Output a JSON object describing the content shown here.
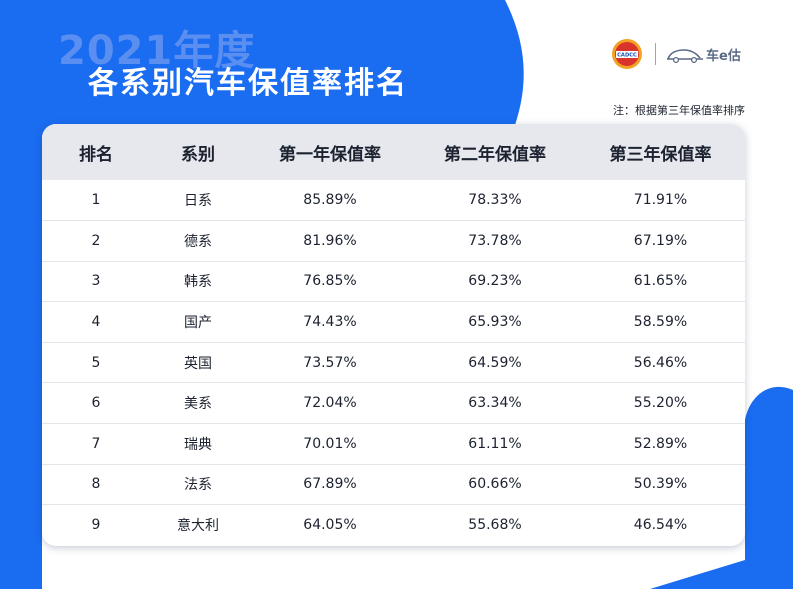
{
  "header": {
    "year": "2021年度",
    "title": "各系别汽车保值率排名",
    "note": "注：根据第三年保值率排序"
  },
  "logos": {
    "cadcc_text": "CADCC",
    "brand_name": "车e估"
  },
  "table": {
    "headers": [
      "排名",
      "系别",
      "第一年保值率",
      "第二年保值率",
      "第三年保值率"
    ],
    "rows": [
      [
        "1",
        "日系",
        "85.89%",
        "78.33%",
        "71.91%"
      ],
      [
        "2",
        "德系",
        "81.96%",
        "73.78%",
        "67.19%"
      ],
      [
        "3",
        "韩系",
        "76.85%",
        "69.23%",
        "61.65%"
      ],
      [
        "4",
        "国产",
        "74.43%",
        "65.93%",
        "58.59%"
      ],
      [
        "5",
        "英国",
        "73.57%",
        "64.59%",
        "56.46%"
      ],
      [
        "6",
        "美系",
        "72.04%",
        "63.34%",
        "55.20%"
      ],
      [
        "7",
        "瑞典",
        "70.01%",
        "61.11%",
        "52.89%"
      ],
      [
        "8",
        "法系",
        "67.89%",
        "60.66%",
        "50.39%"
      ],
      [
        "9",
        "意大利",
        "64.05%",
        "55.68%",
        "46.54%"
      ]
    ]
  },
  "colors": {
    "accent_blue": "#1a6cf0",
    "header_row_bg": "#e6e8ed"
  }
}
